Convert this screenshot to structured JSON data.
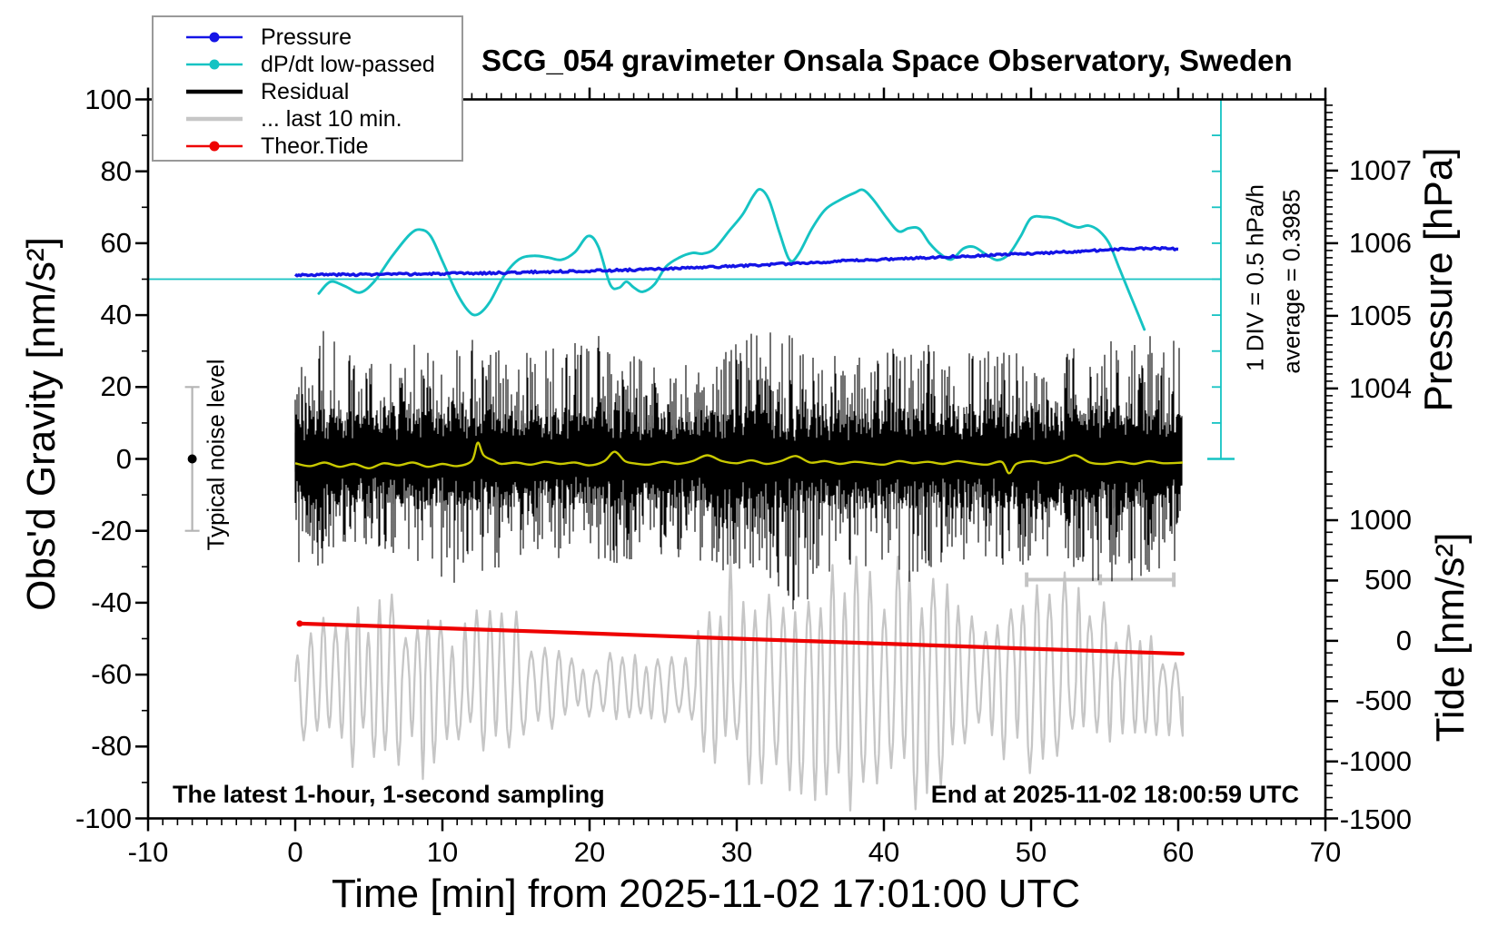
{
  "legend": {
    "items": [
      {
        "label": "Pressure",
        "color": "#1414e6",
        "type": "line-dot"
      },
      {
        "label": "dP/dt low-passed",
        "color": "#15c3c3",
        "type": "line-dot"
      },
      {
        "label": "Residual",
        "color": "#000000",
        "type": "line-thick"
      },
      {
        "label": "... last 10 min.",
        "color": "#c6c6c6",
        "type": "line-thick"
      },
      {
        "label": "Theor.Tide",
        "color": "#ee0000",
        "type": "line-dot"
      }
    ]
  },
  "chart_data": {
    "type": "line",
    "title": "SCG_054 gravimeter Onsala Space Observatory, Sweden",
    "axes": {
      "x": {
        "label": "Time [min] from 2025-11-02 17:01:00 UTC",
        "range": [
          -10,
          70
        ],
        "major_ticks": [
          -10,
          0,
          10,
          20,
          30,
          40,
          50,
          60,
          70
        ],
        "minor_step": 1
      },
      "gravity": {
        "label": "Obs'd Gravity [nm/s²]",
        "range": [
          -100,
          100
        ],
        "major_ticks": [
          100,
          80,
          60,
          40,
          20,
          0,
          -20,
          -40,
          -60,
          -80,
          -100
        ],
        "minor_step": 10
      },
      "pressure": {
        "label": "Pressure [hPa]",
        "major_ticks": [
          1007,
          1006,
          1005,
          1004
        ],
        "minor_step": 0.1,
        "anchor": {
          "hpa": 1005,
          "gravity_units": 39.8,
          "gravity_units_per_hpa": 20.2
        }
      },
      "tide": {
        "label": "Tide [nm/s²]",
        "major_ticks": [
          1000,
          500,
          0,
          -500,
          -1000,
          -1500
        ],
        "minor_step": 100,
        "anchor": {
          "tide0_gravity_units": -50.6,
          "gravity_units_per_1000": 33.55
        }
      }
    },
    "series": {
      "pressure": {
        "name": "Pressure",
        "color": "#1414e6",
        "frame": "gravity-axis",
        "points": [
          [
            0,
            51.2
          ],
          [
            4,
            51.3
          ],
          [
            8,
            51.4
          ],
          [
            12,
            51.6
          ],
          [
            16,
            51.95
          ],
          [
            20,
            52.3
          ],
          [
            24,
            52.7
          ],
          [
            28,
            53.3
          ],
          [
            32,
            54.0
          ],
          [
            36,
            54.8
          ],
          [
            40,
            55.5
          ],
          [
            44,
            56.2
          ],
          [
            48,
            56.8
          ],
          [
            52,
            57.5
          ],
          [
            55,
            58.1
          ],
          [
            57,
            58.5
          ],
          [
            58.5,
            58.6
          ],
          [
            59.3,
            58.5
          ],
          [
            60,
            58.3
          ]
        ]
      },
      "dpdt": {
        "name": "dP/dt low-passed",
        "color": "#15c3c3",
        "frame": "gravity-axis",
        "ref_line_gravity": 50,
        "average_hpa_per_h": 0.3985,
        "points": [
          [
            1.6,
            46
          ],
          [
            2.4,
            49.3
          ],
          [
            3.4,
            48
          ],
          [
            4.4,
            46.3
          ],
          [
            5.4,
            49.5
          ],
          [
            6.6,
            56.5
          ],
          [
            7.8,
            62.5
          ],
          [
            8.5,
            63.8
          ],
          [
            9.2,
            62
          ],
          [
            10,
            55
          ],
          [
            11,
            46
          ],
          [
            11.8,
            41
          ],
          [
            12.4,
            40.2
          ],
          [
            13.2,
            43.5
          ],
          [
            14.2,
            51
          ],
          [
            15.2,
            55.5
          ],
          [
            16.2,
            56.5
          ],
          [
            17.2,
            56
          ],
          [
            18.1,
            55.4
          ],
          [
            19,
            57.5
          ],
          [
            19.9,
            62
          ],
          [
            20.6,
            59
          ],
          [
            21.4,
            48.5
          ],
          [
            22,
            47.6
          ],
          [
            22.5,
            49.3
          ],
          [
            23,
            47.7
          ],
          [
            23.6,
            46.5
          ],
          [
            24.4,
            48.5
          ],
          [
            25.2,
            53.5
          ],
          [
            26.1,
            56
          ],
          [
            27,
            57.3
          ],
          [
            27.7,
            57.1
          ],
          [
            28.5,
            58.5
          ],
          [
            29.5,
            63.5
          ],
          [
            30.4,
            68
          ],
          [
            31.1,
            73
          ],
          [
            31.6,
            75
          ],
          [
            32.2,
            72
          ],
          [
            32.9,
            63
          ],
          [
            33.6,
            55.3
          ],
          [
            34.2,
            57
          ],
          [
            35.1,
            64
          ],
          [
            36,
            69.3
          ],
          [
            37,
            72
          ],
          [
            38,
            74
          ],
          [
            38.6,
            74.8
          ],
          [
            39.3,
            72
          ],
          [
            40.2,
            67
          ],
          [
            41,
            63.3
          ],
          [
            41.7,
            64.2
          ],
          [
            42.4,
            64
          ],
          [
            43.1,
            60
          ],
          [
            43.9,
            56.8
          ],
          [
            44.6,
            55.5
          ],
          [
            45.4,
            58.5
          ],
          [
            46.1,
            59
          ],
          [
            46.9,
            57
          ],
          [
            47.7,
            55.3
          ],
          [
            48.5,
            57
          ],
          [
            49.3,
            62
          ],
          [
            50,
            67
          ],
          [
            50.9,
            67.3
          ],
          [
            51.7,
            66.8
          ],
          [
            52.5,
            65.3
          ],
          [
            53.2,
            64.4
          ],
          [
            53.9,
            64.9
          ],
          [
            54.6,
            63.5
          ],
          [
            55.3,
            60
          ],
          [
            56,
            53
          ],
          [
            56.7,
            46
          ],
          [
            57.3,
            40
          ],
          [
            57.7,
            36
          ]
        ]
      },
      "residual": {
        "name": "Residual",
        "color": "#000000",
        "frame": "gravity-axis",
        "envelope_up_dn": [
          [
            0,
            28,
            30
          ],
          [
            2,
            36,
            30
          ],
          [
            4,
            30,
            28
          ],
          [
            6,
            25,
            26
          ],
          [
            8,
            32,
            30
          ],
          [
            10,
            30,
            34
          ],
          [
            12,
            34,
            36
          ],
          [
            14,
            30,
            30
          ],
          [
            16,
            30,
            28
          ],
          [
            18,
            32,
            30
          ],
          [
            20,
            39,
            28
          ],
          [
            22,
            32,
            30
          ],
          [
            24,
            28,
            26
          ],
          [
            26,
            26,
            28
          ],
          [
            28,
            30,
            30
          ],
          [
            30,
            34,
            32
          ],
          [
            32,
            36,
            34
          ],
          [
            33.7,
            35,
            46
          ],
          [
            36,
            30,
            32
          ],
          [
            38,
            28,
            30
          ],
          [
            40,
            30,
            32
          ],
          [
            42,
            34,
            36
          ],
          [
            44,
            36,
            34
          ],
          [
            46,
            30,
            28
          ],
          [
            48,
            32,
            30
          ],
          [
            50,
            28,
            30
          ],
          [
            52,
            30,
            28
          ],
          [
            54,
            32,
            34
          ],
          [
            56,
            34,
            36
          ],
          [
            58,
            36,
            32
          ],
          [
            60.3,
            34,
            30
          ]
        ]
      },
      "residual_smooth": {
        "name": "Residual low-passed",
        "color": "#c9c900",
        "frame": "gravity-axis",
        "points": [
          [
            0,
            -1.2
          ],
          [
            1,
            -2
          ],
          [
            2,
            -1
          ],
          [
            3,
            -2.2
          ],
          [
            4,
            -1.4
          ],
          [
            5,
            -2.6
          ],
          [
            6,
            -1.2
          ],
          [
            7,
            -1.8
          ],
          [
            8,
            -1
          ],
          [
            9,
            -2.2
          ],
          [
            10,
            -1.4
          ],
          [
            11,
            -2
          ],
          [
            12,
            -0.5
          ],
          [
            12.4,
            4.5
          ],
          [
            12.8,
            1
          ],
          [
            13.5,
            -0.5
          ],
          [
            14,
            -1.4
          ],
          [
            15,
            -1
          ],
          [
            16,
            -1.6
          ],
          [
            17,
            -0.8
          ],
          [
            18,
            -1.4
          ],
          [
            19,
            -1
          ],
          [
            20,
            -1.8
          ],
          [
            21,
            -0.6
          ],
          [
            21.7,
            2
          ],
          [
            22.4,
            -0.6
          ],
          [
            23,
            -1.2
          ],
          [
            24,
            -1.6
          ],
          [
            25,
            -0.8
          ],
          [
            26,
            -1.4
          ],
          [
            27,
            -0.6
          ],
          [
            28,
            1
          ],
          [
            29,
            -0.6
          ],
          [
            30,
            -1.2
          ],
          [
            31,
            -0.4
          ],
          [
            32,
            -1.4
          ],
          [
            33,
            -0.6
          ],
          [
            34,
            0.8
          ],
          [
            35,
            -1
          ],
          [
            36,
            -0.6
          ],
          [
            37,
            -1.4
          ],
          [
            38,
            -0.8
          ],
          [
            39,
            -1.2
          ],
          [
            40,
            -1.6
          ],
          [
            41,
            -0.6
          ],
          [
            42,
            -1.2
          ],
          [
            43,
            -0.8
          ],
          [
            44,
            -1.4
          ],
          [
            45,
            -0.6
          ],
          [
            46,
            -1.2
          ],
          [
            47,
            -1.6
          ],
          [
            48,
            -0.8
          ],
          [
            48.5,
            -4
          ],
          [
            49,
            -1.4
          ],
          [
            50,
            -0.6
          ],
          [
            51,
            -1.2
          ],
          [
            52,
            -0.4
          ],
          [
            53,
            1
          ],
          [
            54,
            -1
          ],
          [
            55,
            -1.4
          ],
          [
            56,
            -0.8
          ],
          [
            57,
            -1.4
          ],
          [
            58,
            -0.6
          ],
          [
            59,
            -1.2
          ],
          [
            60.3,
            -1
          ]
        ]
      },
      "last10": {
        "name": "... last 10 min.",
        "color": "#c6c6c6",
        "frame": "gravity-axis",
        "oscillation_period_min": 0.8,
        "envelope_center_amp": [
          [
            0,
            -62,
            13
          ],
          [
            1,
            -63,
            19
          ],
          [
            4,
            -63,
            20
          ],
          [
            8,
            -61,
            22
          ],
          [
            8.6,
            -60,
            30
          ],
          [
            9.2,
            -63,
            19
          ],
          [
            11,
            -64,
            20
          ],
          [
            13,
            -62,
            18
          ],
          [
            16,
            -62,
            17
          ],
          [
            17,
            -63,
            12
          ],
          [
            18,
            -63,
            9
          ],
          [
            21,
            -63,
            8
          ],
          [
            24,
            -64,
            8
          ],
          [
            27,
            -63,
            9
          ],
          [
            27.8,
            -61,
            25
          ],
          [
            29,
            -60,
            33
          ],
          [
            31,
            -63,
            28
          ],
          [
            33,
            -62,
            30
          ],
          [
            36,
            -63,
            29
          ],
          [
            38,
            -64,
            32
          ],
          [
            39.5,
            -62,
            33
          ],
          [
            41.5,
            -61,
            32
          ],
          [
            43,
            -63,
            31
          ],
          [
            44.5,
            -61,
            22
          ],
          [
            46,
            -61,
            19
          ],
          [
            47.5,
            -62,
            15
          ],
          [
            48.7,
            -58,
            28
          ],
          [
            50,
            -62,
            24
          ],
          [
            52,
            -63,
            28
          ],
          [
            54,
            -60,
            24
          ],
          [
            55.5,
            -62,
            21
          ],
          [
            57,
            -63,
            16
          ],
          [
            59,
            -64,
            13
          ],
          [
            60.3,
            -66,
            12
          ]
        ]
      },
      "theor_tide": {
        "name": "Theor.Tide",
        "color": "#ee0000",
        "frame": "gravity-axis",
        "points": [
          [
            0.3,
            -45.8
          ],
          [
            10,
            -47.1
          ],
          [
            20,
            -48.5
          ],
          [
            30,
            -50
          ],
          [
            40,
            -51.4
          ],
          [
            50,
            -52.8
          ],
          [
            60.3,
            -54.2
          ]
        ]
      }
    },
    "markers": {
      "noise_bar": {
        "label": "Typical noise level",
        "t": -7,
        "gravity_center": 0,
        "half_height": 20,
        "color": "#b4b4b4",
        "dot_color": "#000000"
      },
      "div_scale": {
        "label1": "1 DIV = 0.5 hPa/h",
        "label2": "average = 0.3985",
        "t": 62.9,
        "div_hpa_per_h": 0.5,
        "n_divs": 10,
        "color": "#15c3c3"
      },
      "scale_bar": {
        "t0": 49.7,
        "t1": 59.7,
        "gravity": -33.6,
        "color": "#c4c4c4"
      }
    },
    "texts": {
      "bottom_left": "The latest 1-hour, 1-second sampling",
      "bottom_right": "End at 2025-11-02 18:00:59 UTC"
    }
  }
}
